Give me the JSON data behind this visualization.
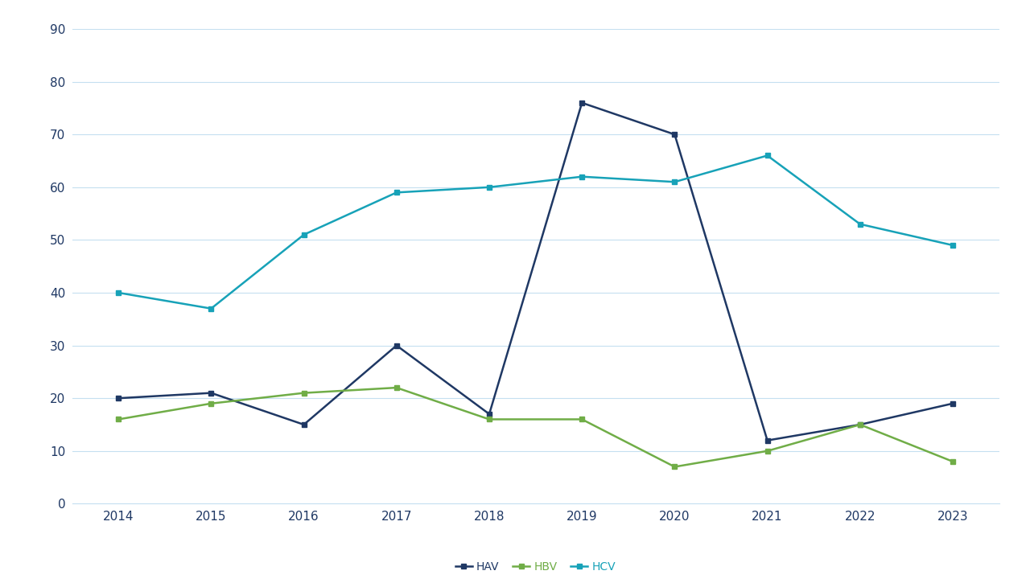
{
  "years": [
    2014,
    2015,
    2016,
    2017,
    2018,
    2019,
    2020,
    2021,
    2022,
    2023
  ],
  "HAV": [
    20,
    21,
    15,
    30,
    17,
    76,
    70,
    12,
    15,
    19
  ],
  "HBV": [
    16,
    19,
    21,
    22,
    16,
    16,
    7,
    10,
    15,
    8
  ],
  "HCV": [
    40,
    37,
    51,
    59,
    60,
    62,
    61,
    66,
    53,
    49
  ],
  "HAV_color": "#1f3864",
  "HBV_color": "#70ad47",
  "HCV_color": "#17a2b8",
  "HAV_label": "HAV",
  "HBV_label": "HBV",
  "HCV_label": "HCV",
  "ylim": [
    0,
    90
  ],
  "yticks": [
    0,
    10,
    20,
    30,
    40,
    50,
    60,
    70,
    80,
    90
  ],
  "background_color": "#ffffff",
  "grid_color": "#c5dff0",
  "marker": "s",
  "linewidth": 1.8,
  "markersize": 5,
  "tick_color": "#1f3864",
  "tick_fontsize": 11
}
